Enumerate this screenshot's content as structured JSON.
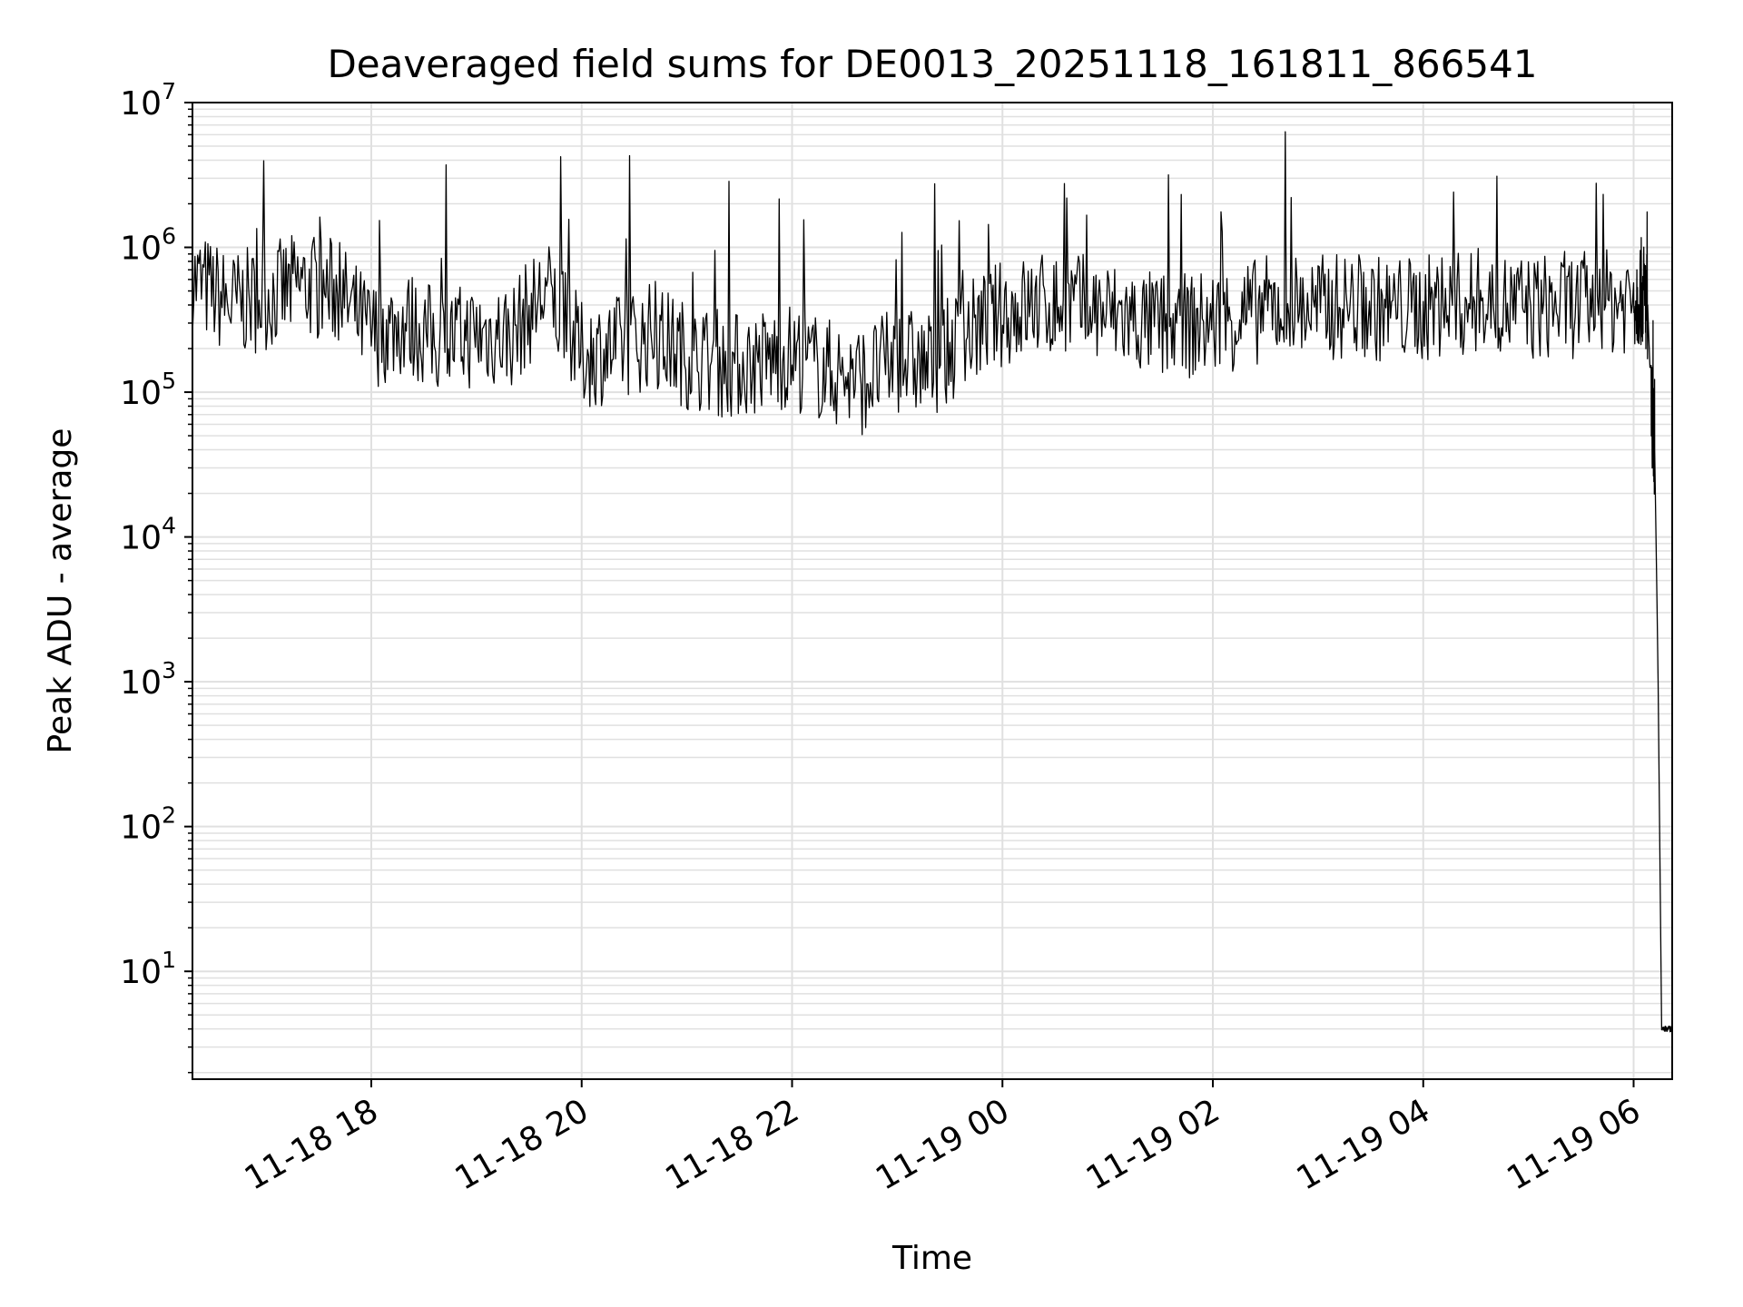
{
  "chart_data": {
    "type": "line",
    "title": "Deaveraged field sums for DE0013_20251118_161811_866541",
    "xlabel": "Time",
    "ylabel": "Peak ADU - average",
    "yscale": "log",
    "ylim": [
      1.8,
      10000000
    ],
    "xlim": [
      "2025-11-18T16:18",
      "2025-11-19T06:22"
    ],
    "x_ticks": [
      {
        "t": "2025-11-18T18:00",
        "label": "11-18 18"
      },
      {
        "t": "2025-11-18T20:00",
        "label": "11-18 20"
      },
      {
        "t": "2025-11-18T22:00",
        "label": "11-18 22"
      },
      {
        "t": "2025-11-19T00:00",
        "label": "11-19 00"
      },
      {
        "t": "2025-11-19T02:00",
        "label": "11-19 02"
      },
      {
        "t": "2025-11-19T04:00",
        "label": "11-19 04"
      },
      {
        "t": "2025-11-19T06:00",
        "label": "11-19 06"
      }
    ],
    "y_ticks": [
      {
        "value": 10,
        "base": "10",
        "exp": "1"
      },
      {
        "value": 100,
        "base": "10",
        "exp": "2"
      },
      {
        "value": 1000,
        "base": "10",
        "exp": "3"
      },
      {
        "value": 10000,
        "base": "10",
        "exp": "4"
      },
      {
        "value": 100000,
        "base": "10",
        "exp": "5"
      },
      {
        "value": 1000000,
        "base": "10",
        "exp": "6"
      },
      {
        "value": 10000000,
        "base": "10",
        "exp": "7"
      }
    ],
    "grid": true,
    "line_color": "#000000",
    "grid_color": "#e0e0e0",
    "series": [
      {
        "x": [
          "2025-11-18T16:18",
          "2025-11-18T16:40",
          "2025-11-18T17:00",
          "2025-11-18T17:20",
          "2025-11-18T17:40",
          "2025-11-18T18:00",
          "2025-11-18T18:20",
          "2025-11-18T18:40",
          "2025-11-18T19:00",
          "2025-11-18T19:20",
          "2025-11-18T19:40",
          "2025-11-18T20:00",
          "2025-11-18T20:20",
          "2025-11-18T20:40",
          "2025-11-18T21:00",
          "2025-11-18T21:20",
          "2025-11-18T21:40",
          "2025-11-18T22:00",
          "2025-11-18T22:20",
          "2025-11-18T22:40",
          "2025-11-18T23:00",
          "2025-11-18T23:20",
          "2025-11-18T23:40",
          "2025-11-19T00:00",
          "2025-11-19T00:20",
          "2025-11-19T00:40",
          "2025-11-19T01:00",
          "2025-11-19T01:20",
          "2025-11-19T01:40",
          "2025-11-19T02:00",
          "2025-11-19T02:20",
          "2025-11-19T02:40",
          "2025-11-19T03:00",
          "2025-11-19T03:20",
          "2025-11-19T03:40",
          "2025-11-19T04:00",
          "2025-11-19T04:20",
          "2025-11-19T04:40",
          "2025-11-19T05:00",
          "2025-11-19T05:20",
          "2025-11-19T05:40",
          "2025-11-19T06:00",
          "2025-11-19T06:05",
          "2025-11-19T06:08",
          "2025-11-19T06:10",
          "2025-11-19T06:12",
          "2025-11-19T06:14",
          "2025-11-19T06:16",
          "2025-11-19T06:22"
        ],
        "y": [
          600000,
          400000,
          450000,
          550000,
          500000,
          250000,
          300000,
          220000,
          250000,
          250000,
          500000,
          180000,
          200000,
          250000,
          180000,
          150000,
          160000,
          180000,
          140000,
          120000,
          170000,
          150000,
          250000,
          350000,
          400000,
          400000,
          350000,
          300000,
          280000,
          300000,
          350000,
          400000,
          380000,
          400000,
          370000,
          380000,
          400000,
          400000,
          380000,
          400000,
          400000,
          450000,
          500000,
          400000,
          90000,
          40000,
          1000,
          4,
          4
        ]
      }
    ]
  }
}
